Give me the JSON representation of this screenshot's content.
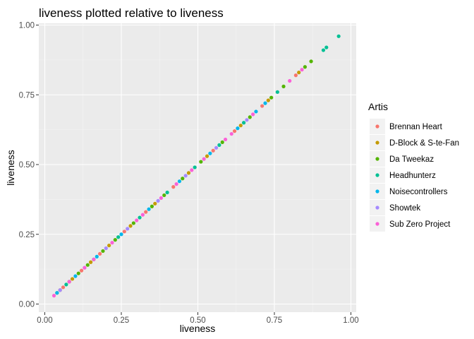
{
  "chart_data": {
    "type": "scatter",
    "title": "liveness plotted relative to liveness",
    "xlabel": "liveness",
    "ylabel": "liveness",
    "xlim": [
      0.0,
      1.0
    ],
    "ylim": [
      0.0,
      1.0
    ],
    "x_ticks": [
      "0.00",
      "0.25",
      "0.50",
      "0.75",
      "1.00"
    ],
    "y_ticks": [
      "0.00",
      "0.25",
      "0.50",
      "0.75",
      "1.00"
    ],
    "grid": true,
    "legend": {
      "title": "Artis",
      "placement": "right"
    },
    "series": [
      {
        "name": "Brennan Heart",
        "color": "#F8766D",
        "x": [
          0.06,
          0.12,
          0.18,
          0.26,
          0.33,
          0.42,
          0.55,
          0.62,
          0.71,
          0.82
        ],
        "y": [
          0.06,
          0.12,
          0.18,
          0.26,
          0.33,
          0.42,
          0.55,
          0.62,
          0.71,
          0.82
        ]
      },
      {
        "name": "D-Block & S-te-Fan",
        "color": "#C49A00",
        "x": [
          0.05,
          0.09,
          0.15,
          0.21,
          0.28,
          0.36,
          0.47,
          0.53,
          0.64,
          0.73,
          0.83
        ],
        "y": [
          0.05,
          0.09,
          0.15,
          0.21,
          0.28,
          0.36,
          0.47,
          0.53,
          0.64,
          0.73,
          0.83
        ]
      },
      {
        "name": "Da Tweekaz",
        "color": "#53B400",
        "x": [
          0.04,
          0.08,
          0.11,
          0.14,
          0.19,
          0.23,
          0.29,
          0.35,
          0.39,
          0.45,
          0.51,
          0.58,
          0.67,
          0.74,
          0.78,
          0.85,
          0.87
        ],
        "y": [
          0.04,
          0.08,
          0.11,
          0.14,
          0.19,
          0.23,
          0.29,
          0.35,
          0.39,
          0.45,
          0.51,
          0.58,
          0.67,
          0.74,
          0.78,
          0.85,
          0.87
        ]
      },
      {
        "name": "Headhunterz",
        "color": "#00C094",
        "x": [
          0.07,
          0.16,
          0.24,
          0.31,
          0.4,
          0.49,
          0.57,
          0.65,
          0.76,
          0.91,
          0.92,
          0.96
        ],
        "y": [
          0.07,
          0.16,
          0.24,
          0.31,
          0.4,
          0.49,
          0.57,
          0.65,
          0.76,
          0.91,
          0.92,
          0.96
        ]
      },
      {
        "name": "Noisecontrollers",
        "color": "#00B6EB",
        "x": [
          0.04,
          0.1,
          0.17,
          0.25,
          0.34,
          0.44,
          0.54,
          0.63,
          0.69,
          0.72
        ],
        "y": [
          0.04,
          0.1,
          0.17,
          0.25,
          0.34,
          0.44,
          0.54,
          0.63,
          0.69,
          0.72
        ]
      },
      {
        "name": "Showtek",
        "color": "#A58AFF",
        "x": [
          0.05,
          0.13,
          0.2,
          0.27,
          0.37,
          0.46,
          0.56,
          0.66
        ],
        "y": [
          0.05,
          0.13,
          0.2,
          0.27,
          0.37,
          0.46,
          0.56,
          0.66
        ]
      },
      {
        "name": "Sub Zero Project",
        "color": "#FB61D7",
        "x": [
          0.03,
          0.08,
          0.13,
          0.16,
          0.22,
          0.3,
          0.32,
          0.38,
          0.43,
          0.48,
          0.52,
          0.59,
          0.61,
          0.68,
          0.8,
          0.84
        ],
        "y": [
          0.03,
          0.08,
          0.13,
          0.16,
          0.22,
          0.3,
          0.32,
          0.38,
          0.43,
          0.48,
          0.52,
          0.59,
          0.61,
          0.68,
          0.8,
          0.84
        ]
      }
    ]
  }
}
